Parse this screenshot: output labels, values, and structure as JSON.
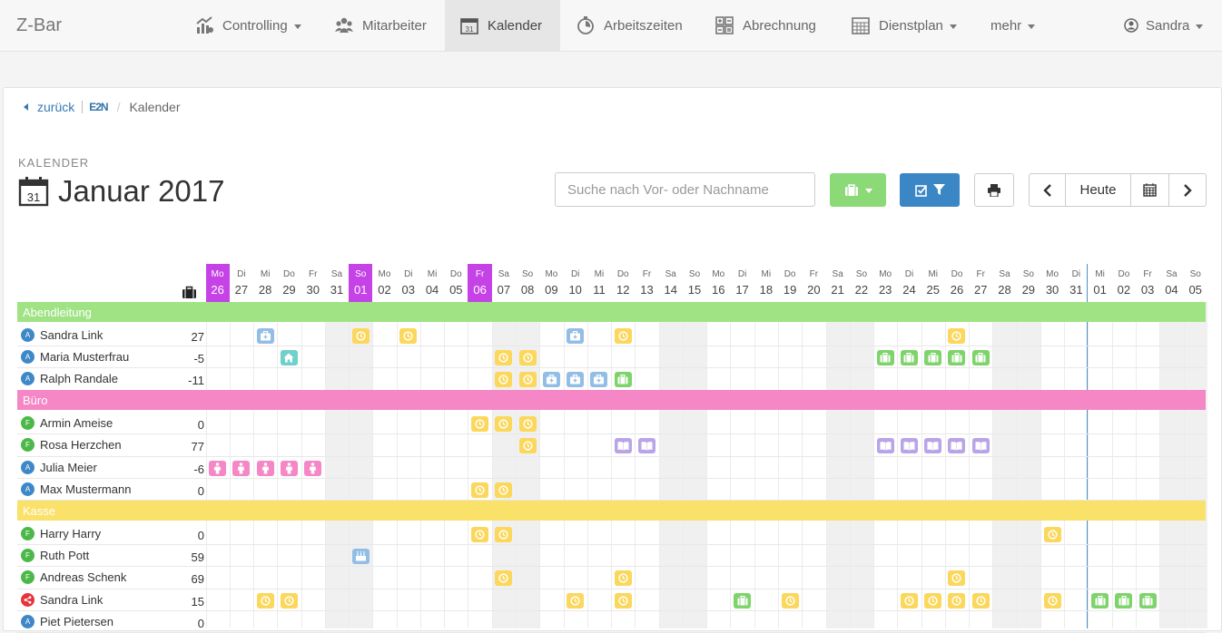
{
  "nav": {
    "brand": "Z-Bar",
    "items": [
      {
        "label": "Controlling",
        "icon": "controlling-icon",
        "caret": true,
        "active": false
      },
      {
        "label": "Mitarbeiter",
        "icon": "team-icon",
        "caret": false,
        "active": false
      },
      {
        "label": "Kalender",
        "icon": "calendar-icon",
        "caret": false,
        "active": true
      },
      {
        "label": "Arbeitszeiten",
        "icon": "stopwatch-icon",
        "caret": false,
        "active": false
      },
      {
        "label": "Abrechnung",
        "icon": "calculator-icon",
        "caret": false,
        "active": false
      },
      {
        "label": "Dienstplan",
        "icon": "schedule-icon",
        "caret": true,
        "active": false
      },
      {
        "label": "mehr",
        "icon": "",
        "caret": true,
        "active": false
      }
    ],
    "user": "Sandra"
  },
  "breadcrumb": {
    "back": "zurück",
    "logo": "E2N",
    "current": "Kalender"
  },
  "header": {
    "label": "KALENDER",
    "title": "Januar 2017",
    "title_icon_day": "31"
  },
  "toolbar": {
    "search_placeholder": "Suche nach Vor- oder Nachname",
    "today_label": "Heute",
    "absence_button_icon": "suitcase-icon",
    "filter_button_icon": "filter-icon",
    "print_button_icon": "print-icon"
  },
  "colors": {
    "highlight_day": "#c543e6",
    "group_abendleitung": "#9fe384",
    "group_buero": "#f587c6",
    "group_kasse": "#fae16a",
    "ev_clock": "#fbd75b",
    "ev_sick": "#92bde5",
    "ev_home": "#6fd0cc",
    "ev_vacation": "#7fd36c",
    "ev_school": "#b9a4e8",
    "ev_maternity": "#f587c6",
    "badge_a": "#3f88c8",
    "badge_f": "#4cb84a",
    "badge_share": "#e8333b"
  },
  "days": [
    {
      "n": "Mo",
      "d": "26",
      "hl": true
    },
    {
      "n": "Di",
      "d": "27"
    },
    {
      "n": "Mi",
      "d": "28"
    },
    {
      "n": "Do",
      "d": "29"
    },
    {
      "n": "Fr",
      "d": "30"
    },
    {
      "n": "Sa",
      "d": "31",
      "we": true
    },
    {
      "n": "So",
      "d": "01",
      "hl": true,
      "we": true
    },
    {
      "n": "Mo",
      "d": "02"
    },
    {
      "n": "Di",
      "d": "03"
    },
    {
      "n": "Mi",
      "d": "04"
    },
    {
      "n": "Do",
      "d": "05"
    },
    {
      "n": "Fr",
      "d": "06",
      "hl": true
    },
    {
      "n": "Sa",
      "d": "07",
      "we": true
    },
    {
      "n": "So",
      "d": "08",
      "we": true
    },
    {
      "n": "Mo",
      "d": "09"
    },
    {
      "n": "Di",
      "d": "10"
    },
    {
      "n": "Mi",
      "d": "11"
    },
    {
      "n": "Do",
      "d": "12"
    },
    {
      "n": "Fr",
      "d": "13"
    },
    {
      "n": "Sa",
      "d": "14",
      "we": true
    },
    {
      "n": "So",
      "d": "15",
      "we": true
    },
    {
      "n": "Mo",
      "d": "16"
    },
    {
      "n": "Di",
      "d": "17"
    },
    {
      "n": "Mi",
      "d": "18"
    },
    {
      "n": "Do",
      "d": "19"
    },
    {
      "n": "Fr",
      "d": "20"
    },
    {
      "n": "Sa",
      "d": "21",
      "we": true
    },
    {
      "n": "So",
      "d": "22",
      "we": true
    },
    {
      "n": "Mo",
      "d": "23"
    },
    {
      "n": "Di",
      "d": "24"
    },
    {
      "n": "Mi",
      "d": "25"
    },
    {
      "n": "Do",
      "d": "26"
    },
    {
      "n": "Fr",
      "d": "27"
    },
    {
      "n": "Sa",
      "d": "28",
      "we": true
    },
    {
      "n": "So",
      "d": "29",
      "we": true
    },
    {
      "n": "Mo",
      "d": "30"
    },
    {
      "n": "Di",
      "d": "31"
    },
    {
      "n": "Mi",
      "d": "01"
    },
    {
      "n": "Do",
      "d": "02"
    },
    {
      "n": "Fr",
      "d": "03"
    },
    {
      "n": "Sa",
      "d": "04",
      "we": true
    },
    {
      "n": "So",
      "d": "05",
      "we": true
    }
  ],
  "groups": [
    {
      "name": "Abendleitung",
      "color_key": "group_abendleitung",
      "people": [
        {
          "name": "Sandra Link",
          "badge": "A",
          "value": "27",
          "events": [
            [
              2,
              "sick"
            ],
            [
              6,
              "clock"
            ],
            [
              8,
              "clock"
            ],
            [
              15,
              "sick"
            ],
            [
              17,
              "clock"
            ],
            [
              31,
              "clock"
            ]
          ]
        },
        {
          "name": "Maria Musterfrau",
          "badge": "A",
          "value": "-5",
          "events": [
            [
              3,
              "home"
            ],
            [
              12,
              "clock"
            ],
            [
              13,
              "clock"
            ],
            [
              28,
              "vacation"
            ],
            [
              29,
              "vacation"
            ],
            [
              30,
              "vacation"
            ],
            [
              31,
              "vacation"
            ],
            [
              32,
              "vacation"
            ]
          ]
        },
        {
          "name": "Ralph Randale",
          "badge": "A",
          "value": "-11",
          "events": [
            [
              12,
              "clock"
            ],
            [
              13,
              "clock"
            ],
            [
              14,
              "sick"
            ],
            [
              15,
              "sick"
            ],
            [
              16,
              "sick"
            ],
            [
              17,
              "vacation"
            ]
          ]
        }
      ]
    },
    {
      "name": "Büro",
      "color_key": "group_buero",
      "people": [
        {
          "name": "Armin Ameise",
          "badge": "F",
          "value": "0",
          "events": [
            [
              11,
              "clock"
            ],
            [
              12,
              "clock"
            ],
            [
              13,
              "clock"
            ]
          ]
        },
        {
          "name": "Rosa Herzchen",
          "badge": "F",
          "value": "77",
          "events": [
            [
              13,
              "clock"
            ],
            [
              17,
              "school"
            ],
            [
              18,
              "school"
            ],
            [
              28,
              "school"
            ],
            [
              29,
              "school"
            ],
            [
              30,
              "school"
            ],
            [
              31,
              "school"
            ],
            [
              32,
              "school"
            ]
          ]
        },
        {
          "name": "Julia Meier",
          "badge": "A",
          "value": "-6",
          "events": [
            [
              0,
              "maternity"
            ],
            [
              1,
              "maternity"
            ],
            [
              2,
              "maternity"
            ],
            [
              3,
              "maternity"
            ],
            [
              4,
              "maternity"
            ]
          ]
        },
        {
          "name": "Max Mustermann",
          "badge": "A",
          "value": "0",
          "events": [
            [
              11,
              "clock"
            ],
            [
              12,
              "clock"
            ]
          ]
        }
      ]
    },
    {
      "name": "Kasse",
      "color_key": "group_kasse",
      "people": [
        {
          "name": "Harry Harry",
          "badge": "F",
          "value": "0",
          "events": [
            [
              11,
              "clock"
            ],
            [
              12,
              "clock"
            ],
            [
              35,
              "clock"
            ]
          ]
        },
        {
          "name": "Ruth Pott",
          "badge": "F",
          "value": "59",
          "events": [
            [
              6,
              "birthday"
            ]
          ]
        },
        {
          "name": "Andreas Schenk",
          "badge": "F",
          "value": "69",
          "events": [
            [
              12,
              "clock"
            ],
            [
              17,
              "clock"
            ],
            [
              31,
              "clock"
            ]
          ]
        },
        {
          "name": "Sandra Link",
          "badge": "share",
          "value": "15",
          "events": [
            [
              2,
              "clock"
            ],
            [
              3,
              "clock"
            ],
            [
              15,
              "clock"
            ],
            [
              17,
              "clock"
            ],
            [
              22,
              "vacation"
            ],
            [
              24,
              "clock"
            ],
            [
              29,
              "clock"
            ],
            [
              30,
              "clock"
            ],
            [
              31,
              "clock"
            ],
            [
              32,
              "clock"
            ],
            [
              35,
              "clock"
            ],
            [
              37,
              "vacation"
            ],
            [
              38,
              "vacation"
            ],
            [
              39,
              "vacation"
            ]
          ]
        },
        {
          "name": "Piet Pietersen",
          "badge": "A",
          "value": "0",
          "events": []
        }
      ]
    }
  ]
}
